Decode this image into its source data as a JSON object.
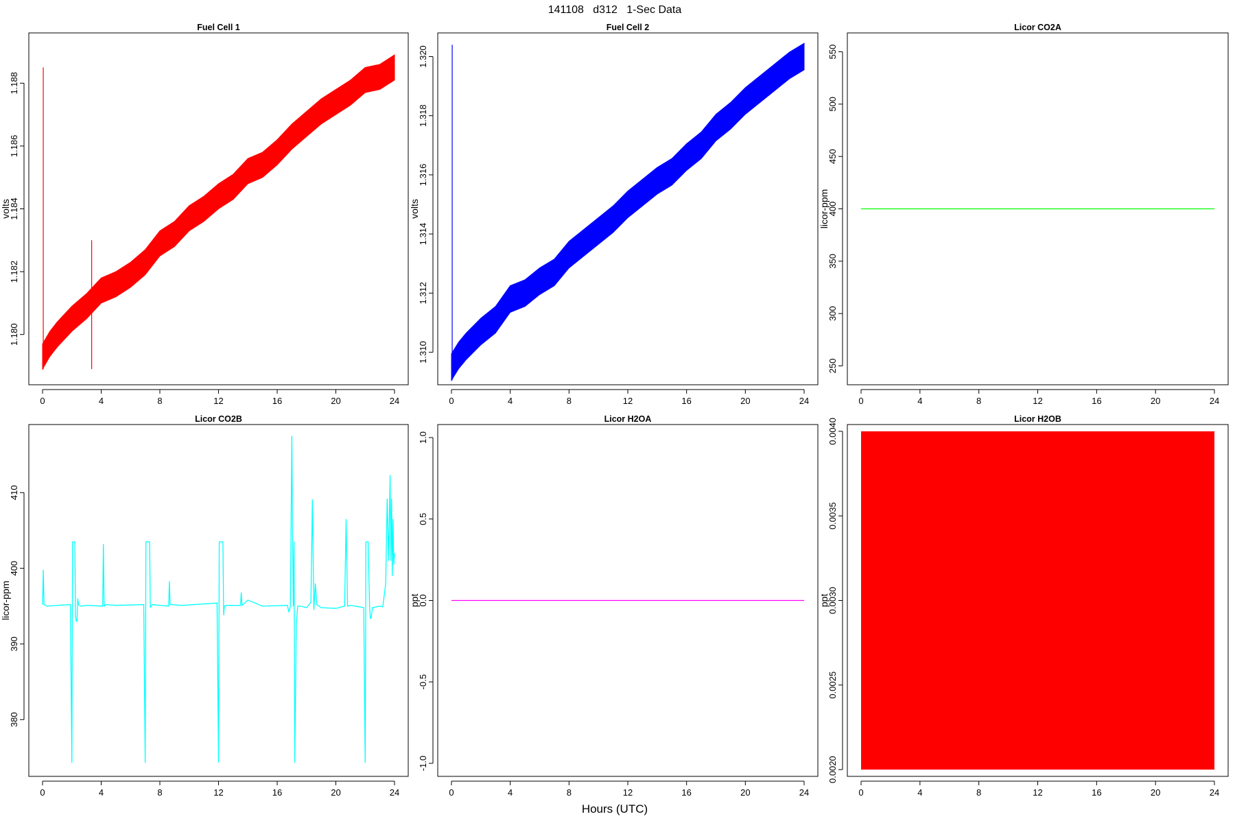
{
  "figure": {
    "title": "141108   d312   1-Sec Data",
    "xlabel": "Hours (UTC)"
  },
  "chart_data": [
    {
      "type": "line",
      "title": "Fuel Cell 1",
      "ylabel": "volts",
      "xlim": [
        0,
        24
      ],
      "ylim": [
        1.1784,
        1.1896
      ],
      "xticks": [
        0,
        4,
        8,
        12,
        16,
        20,
        24
      ],
      "xtick_labels": [
        "0",
        "4",
        "8",
        "12",
        "16",
        "20",
        "24"
      ],
      "yticks": [
        1.18,
        1.182,
        1.184,
        1.186,
        1.188
      ],
      "ytick_labels": [
        "1.180",
        "1.182",
        "1.184",
        "1.186",
        "1.188"
      ],
      "color": "#ff0000",
      "band": true,
      "band_width": 0.0008,
      "series": [
        {
          "x": [
            0,
            0.5,
            1,
            2,
            3,
            4,
            5,
            6,
            7,
            8,
            9,
            10,
            11,
            12,
            13,
            14,
            15,
            16,
            17,
            18,
            19,
            20,
            21,
            22,
            23,
            24
          ],
          "y": [
            1.1793,
            1.1797,
            1.18,
            1.1805,
            1.1809,
            1.1814,
            1.1816,
            1.1819,
            1.1823,
            1.1829,
            1.1832,
            1.1837,
            1.184,
            1.1844,
            1.1847,
            1.1852,
            1.1854,
            1.1858,
            1.1863,
            1.1867,
            1.1871,
            1.1874,
            1.1877,
            1.1881,
            1.1882,
            1.1885
          ]
        }
      ],
      "spikes": [
        {
          "x": 0.05,
          "y": 1.1885
        },
        {
          "x": 3.35,
          "y": 1.183
        }
      ]
    },
    {
      "type": "line",
      "title": "Fuel Cell 2",
      "ylabel": "volts",
      "xlim": [
        0,
        24
      ],
      "ylim": [
        1.3089,
        1.3208
      ],
      "xticks": [
        0,
        4,
        8,
        12,
        16,
        20,
        24
      ],
      "xtick_labels": [
        "0",
        "4",
        "8",
        "12",
        "16",
        "20",
        "24"
      ],
      "yticks": [
        1.31,
        1.312,
        1.314,
        1.316,
        1.318,
        1.32
      ],
      "ytick_labels": [
        "1.310",
        "1.312",
        "1.314",
        "1.316",
        "1.318",
        "1.320"
      ],
      "color": "#0000ff",
      "band": true,
      "band_width": 0.0009,
      "series": [
        {
          "x": [
            0,
            0.5,
            1,
            2,
            3,
            4,
            5,
            6,
            7,
            8,
            9,
            10,
            11,
            12,
            13,
            14,
            15,
            16,
            17,
            18,
            19,
            20,
            21,
            22,
            23,
            24
          ],
          "y": [
            1.3095,
            1.3099,
            1.3102,
            1.3107,
            1.3111,
            1.3118,
            1.312,
            1.3124,
            1.3127,
            1.3133,
            1.3137,
            1.3141,
            1.3145,
            1.315,
            1.3154,
            1.3158,
            1.3161,
            1.3166,
            1.317,
            1.3176,
            1.318,
            1.3185,
            1.3189,
            1.3193,
            1.3197,
            1.32
          ]
        }
      ],
      "spikes": [
        {
          "x": 0.05,
          "y": 1.3204
        }
      ]
    },
    {
      "type": "line",
      "title": "Licor CO2A",
      "ylabel": "licor-ppm",
      "xlim": [
        0,
        24
      ],
      "ylim": [
        232,
        568
      ],
      "xticks": [
        0,
        4,
        8,
        12,
        16,
        20,
        24
      ],
      "xtick_labels": [
        "0",
        "4",
        "8",
        "12",
        "16",
        "20",
        "24"
      ],
      "yticks": [
        250,
        300,
        350,
        400,
        450,
        500,
        550
      ],
      "ytick_labels": [
        "250",
        "300",
        "350",
        "400",
        "450",
        "500",
        "550"
      ],
      "color": "#00ff00",
      "series": [
        {
          "x": [
            0,
            24
          ],
          "y": [
            400,
            400
          ]
        }
      ]
    },
    {
      "type": "line",
      "title": "Licor CO2B",
      "ylabel": "licor-ppm",
      "xlim": [
        0,
        24
      ],
      "ylim": [
        372.5,
        419
      ],
      "xticks": [
        0,
        4,
        8,
        12,
        16,
        20,
        24
      ],
      "xtick_labels": [
        "0",
        "4",
        "8",
        "12",
        "16",
        "20",
        "24"
      ],
      "yticks": [
        380,
        390,
        400,
        410
      ],
      "ytick_labels": [
        "380",
        "390",
        "400",
        "410"
      ],
      "color": "#00ffff",
      "series": [
        {
          "x": [
            0,
            0.05,
            0.1,
            0.3,
            1.0,
            1.9,
            2.0,
            2.05,
            2.2,
            2.25,
            2.3,
            2.35,
            2.4,
            2.45,
            2.5,
            2.6,
            3.0,
            4.1,
            4.15,
            4.2,
            4.3,
            5.0,
            6.9,
            7.0,
            7.05,
            7.1,
            7.15,
            7.3,
            7.35,
            7.4,
            7.5,
            8.6,
            8.65,
            8.7,
            9.5,
            11.9,
            12.0,
            12.05,
            12.1,
            12.15,
            12.3,
            12.35,
            12.4,
            12.5,
            13.5,
            13.55,
            13.6,
            14.0,
            15.0,
            16.7,
            16.8,
            16.9,
            17.0,
            17.05,
            17.1,
            17.15,
            17.2,
            17.3,
            17.4,
            17.6,
            18.0,
            18.3,
            18.4,
            18.5,
            18.6,
            18.7,
            19.0,
            20.0,
            20.6,
            20.7,
            20.8,
            21.0,
            21.9,
            22.0,
            22.05,
            22.1,
            22.2,
            22.3,
            22.35,
            22.4,
            22.5,
            23.0,
            23.2,
            23.4,
            23.5,
            23.6,
            23.7,
            23.75,
            23.8,
            23.85,
            23.9,
            23.95,
            24.0
          ],
          "y": [
            395.2,
            399.8,
            395.2,
            395.0,
            395.1,
            395.2,
            374.3,
            403.5,
            403.5,
            393.6,
            393.0,
            393.0,
            396.0,
            395.3,
            395.1,
            395.0,
            395.1,
            395.0,
            403.2,
            395.0,
            395.2,
            395.1,
            395.2,
            374.3,
            403.5,
            403.5,
            403.5,
            403.5,
            394.8,
            395.0,
            395.2,
            395.0,
            398.3,
            395.2,
            395.1,
            395.4,
            374.3,
            403.5,
            403.5,
            403.5,
            403.5,
            393.8,
            395.0,
            395.1,
            395.1,
            396.8,
            395.1,
            395.8,
            395.0,
            395.1,
            394.2,
            395.0,
            417.5,
            403.5,
            395.0,
            403.5,
            374.3,
            392.5,
            395.0,
            395.0,
            394.8,
            395.5,
            409.1,
            394.5,
            398.0,
            395.2,
            394.8,
            394.7,
            395.0,
            406.5,
            395.0,
            395.1,
            394.8,
            374.3,
            403.5,
            403.5,
            403.5,
            395.0,
            393.4,
            393.4,
            394.8,
            395.0,
            394.9,
            398.0,
            409.2,
            401.0,
            412.3,
            401.0,
            409.2,
            399.0,
            406.5,
            400.5,
            402.0
          ]
        }
      ]
    },
    {
      "type": "line",
      "title": "Licor H2OA",
      "ylabel": "ppt",
      "xlim": [
        0,
        24
      ],
      "ylim": [
        -1.08,
        1.08
      ],
      "xticks": [
        0,
        4,
        8,
        12,
        16,
        20,
        24
      ],
      "xtick_labels": [
        "0",
        "4",
        "8",
        "12",
        "16",
        "20",
        "24"
      ],
      "yticks": [
        -1,
        -0.5,
        0,
        0.5,
        1
      ],
      "ytick_labels": [
        "-1.0",
        "-0.5",
        "0.0",
        "0.5",
        "1.0"
      ],
      "color": "#ff00ff",
      "series": [
        {
          "x": [
            0,
            24
          ],
          "y": [
            0,
            0
          ]
        }
      ]
    },
    {
      "type": "line",
      "title": "Licor H2OB",
      "ylabel": "ppt",
      "xlim": [
        0,
        24
      ],
      "ylim": [
        0.00196,
        0.00404
      ],
      "xticks": [
        0,
        4,
        8,
        12,
        16,
        20,
        24
      ],
      "xtick_labels": [
        "0",
        "4",
        "8",
        "12",
        "16",
        "20",
        "24"
      ],
      "yticks": [
        0.002,
        0.0025,
        0.003,
        0.0035,
        0.004
      ],
      "ytick_labels": [
        "0.0020",
        "0.0025",
        "0.0030",
        "0.0035",
        "0.0040"
      ],
      "color": "#ff0000",
      "fill_between": true,
      "series": [
        {
          "x": [
            0,
            24
          ],
          "y_low": [
            0.002,
            0.002
          ],
          "y_high": [
            0.004,
            0.004
          ]
        }
      ]
    }
  ]
}
